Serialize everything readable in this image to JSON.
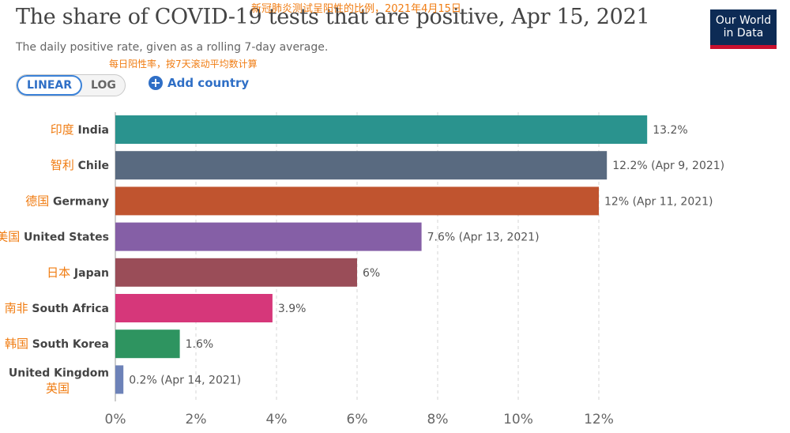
{
  "header": {
    "title": "The share of COVID-19 tests that are positive, Apr 15, 2021",
    "title_cn": "新冠肺炎测试呈阳性的比例，2021年4月15日",
    "subtitle": "The daily positive rate, given as a rolling 7-day average.",
    "subtitle_cn": "每日阳性率，按7天滚动平均数计算"
  },
  "logo": {
    "line1": "Our World",
    "line2": "in Data"
  },
  "controls": {
    "linear_label": "LINEAR",
    "log_label": "LOG",
    "add_country_label": "Add country"
  },
  "colors": {
    "accent": "#2f6fc6",
    "cn_annotation": "#f07c12",
    "logo_bg": "#0d2b55",
    "logo_bar": "#c8102e"
  },
  "chart_data": {
    "type": "bar",
    "orientation": "horizontal",
    "xlim": [
      0,
      13
    ],
    "ticks": [
      "0%",
      "2%",
      "4%",
      "6%",
      "8%",
      "10%",
      "12%"
    ],
    "tick_values": [
      0,
      2,
      4,
      6,
      8,
      10,
      12
    ],
    "grid": true,
    "series": [
      {
        "country": "India",
        "cn": "印度",
        "value": 13.2,
        "label": "13.2%",
        "color": "#2a938e"
      },
      {
        "country": "Chile",
        "cn": "智利",
        "value": 12.2,
        "label": "12.2% (Apr 9, 2021)",
        "color": "#596a80"
      },
      {
        "country": "Germany",
        "cn": "德国",
        "value": 12.0,
        "label": "12% (Apr 11, 2021)",
        "color": "#c0542f"
      },
      {
        "country": "United States",
        "cn": "美国",
        "value": 7.6,
        "label": "7.6% (Apr 13, 2021)",
        "color": "#855fa6"
      },
      {
        "country": "Japan",
        "cn": "日本",
        "value": 6.0,
        "label": "6%",
        "color": "#9a4d58"
      },
      {
        "country": "South Africa",
        "cn": "南非",
        "value": 3.9,
        "label": "3.9%",
        "color": "#d6377a"
      },
      {
        "country": "South Korea",
        "cn": "韩国",
        "value": 1.6,
        "label": "1.6%",
        "color": "#2e9460"
      },
      {
        "country": "United Kingdom",
        "cn": "英国",
        "value": 0.2,
        "label": "0.2% (Apr 14, 2021)",
        "color": "#6d82b8"
      }
    ]
  }
}
